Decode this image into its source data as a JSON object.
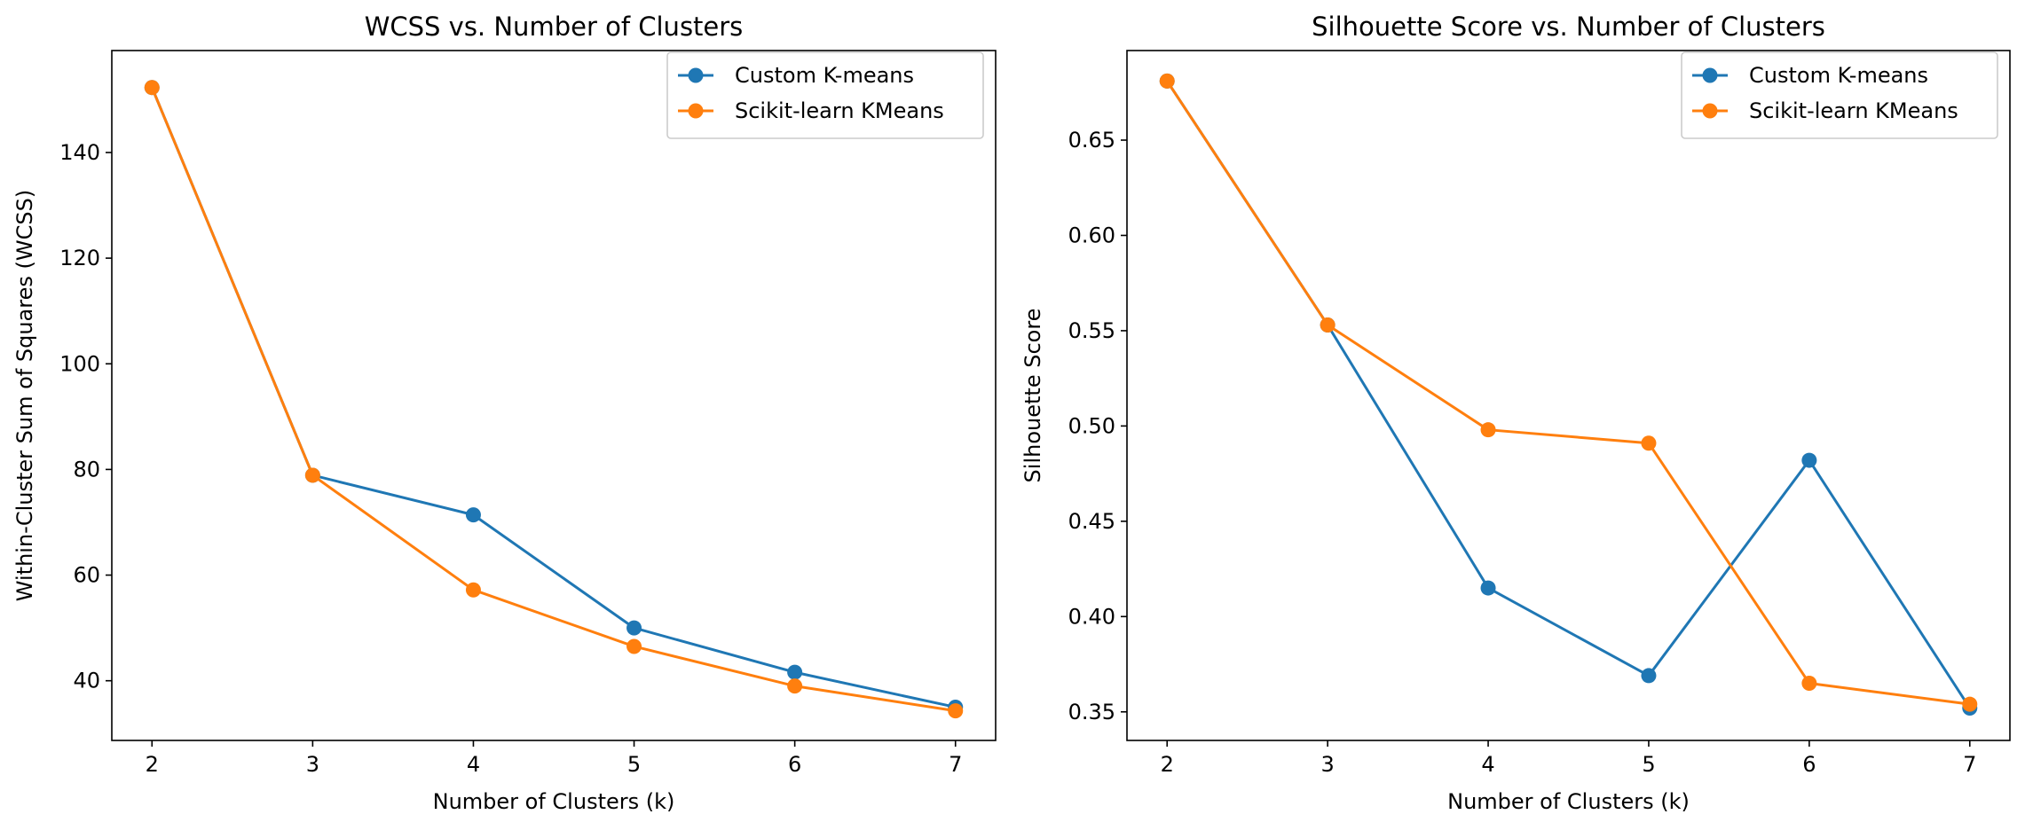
{
  "chart_data": [
    {
      "type": "line",
      "title": "WCSS vs. Number of Clusters",
      "xlabel": "Number of Clusters (k)",
      "ylabel": "Within-Cluster Sum of Squares (WCSS)",
      "x": [
        2,
        3,
        4,
        5,
        6,
        7
      ],
      "xlim": [
        1.75,
        7.25
      ],
      "ylim": [
        28.7,
        159.3
      ],
      "xticks": [
        2,
        3,
        4,
        5,
        6,
        7
      ],
      "yticks": [
        40,
        60,
        80,
        100,
        120,
        140
      ],
      "ytick_labels": [
        "40",
        "60",
        "80",
        "100",
        "120",
        "140"
      ],
      "legend_position": "upper right",
      "series": [
        {
          "name": "Custom K-means",
          "color": "#1f77b4",
          "values": [
            152.3,
            78.9,
            71.4,
            50.0,
            41.6,
            35.0
          ]
        },
        {
          "name": "Scikit-learn KMeans",
          "color": "#ff7f0e",
          "values": [
            152.3,
            78.9,
            57.2,
            46.5,
            39.0,
            34.3
          ]
        }
      ]
    },
    {
      "type": "line",
      "title": "Silhouette Score vs. Number of Clusters",
      "xlabel": "Number of Clusters (k)",
      "ylabel": "Silhouette Score",
      "x": [
        2,
        3,
        4,
        5,
        6,
        7
      ],
      "xlim": [
        1.75,
        7.25
      ],
      "ylim": [
        0.335,
        0.697
      ],
      "xticks": [
        2,
        3,
        4,
        5,
        6,
        7
      ],
      "yticks": [
        0.35,
        0.4,
        0.45,
        0.5,
        0.55,
        0.6,
        0.65
      ],
      "ytick_labels": [
        "0.35",
        "0.40",
        "0.45",
        "0.50",
        "0.55",
        "0.60",
        "0.65"
      ],
      "legend_position": "upper right",
      "series": [
        {
          "name": "Custom K-means",
          "color": "#1f77b4",
          "values": [
            0.681,
            0.553,
            0.415,
            0.369,
            0.482,
            0.352
          ]
        },
        {
          "name": "Scikit-learn KMeans",
          "color": "#ff7f0e",
          "values": [
            0.681,
            0.553,
            0.498,
            0.491,
            0.365,
            0.354
          ]
        }
      ]
    }
  ]
}
